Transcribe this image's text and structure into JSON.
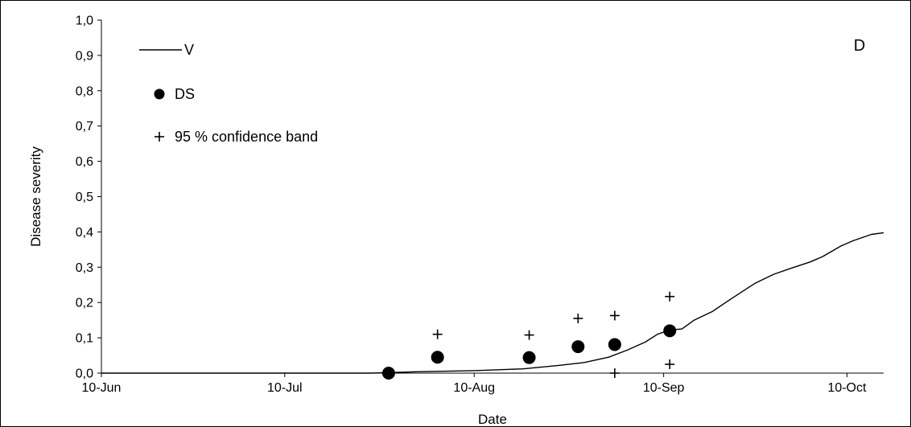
{
  "chart_data": {
    "type": "line",
    "panel_label": "D",
    "title": "",
    "xlabel": "Date",
    "ylabel": "Disease severity",
    "xlim": [
      "2000-06-10",
      "2000-10-16"
    ],
    "ylim": [
      0,
      1
    ],
    "x_ticks": [
      {
        "date": "2000-06-10",
        "label": "10-Jun"
      },
      {
        "date": "2000-07-10",
        "label": "10-Jul"
      },
      {
        "date": "2000-08-10",
        "label": "10-Aug"
      },
      {
        "date": "2000-09-10",
        "label": "10-Sep"
      },
      {
        "date": "2000-10-10",
        "label": "10-Oct"
      }
    ],
    "y_ticks": [
      {
        "value": 0.0,
        "label": "0,0"
      },
      {
        "value": 0.1,
        "label": "0,1"
      },
      {
        "value": 0.2,
        "label": "0,2"
      },
      {
        "value": 0.3,
        "label": "0,3"
      },
      {
        "value": 0.4,
        "label": "0,4"
      },
      {
        "value": 0.5,
        "label": "0,5"
      },
      {
        "value": 0.6,
        "label": "0,6"
      },
      {
        "value": 0.7,
        "label": "0,7"
      },
      {
        "value": 0.8,
        "label": "0,8"
      },
      {
        "value": 0.9,
        "label": "0,9"
      },
      {
        "value": 1.0,
        "label": "1,0"
      }
    ],
    "grid": false,
    "legend_position": "top-left",
    "series": [
      {
        "name": "V",
        "type": "line",
        "color": "#000000",
        "points": [
          {
            "x": "2000-06-10",
            "y": 0.0
          },
          {
            "x": "2000-07-24",
            "y": 0.0
          },
          {
            "x": "2000-08-01",
            "y": 0.004
          },
          {
            "x": "2000-08-10",
            "y": 0.007
          },
          {
            "x": "2000-08-18",
            "y": 0.012
          },
          {
            "x": "2000-08-24",
            "y": 0.022
          },
          {
            "x": "2000-08-28",
            "y": 0.03
          },
          {
            "x": "2000-09-01",
            "y": 0.045
          },
          {
            "x": "2000-09-04",
            "y": 0.065
          },
          {
            "x": "2000-09-07",
            "y": 0.088
          },
          {
            "x": "2000-09-09",
            "y": 0.11
          },
          {
            "x": "2000-09-11",
            "y": 0.122
          },
          {
            "x": "2000-09-13",
            "y": 0.125
          },
          {
            "x": "2000-09-15",
            "y": 0.15
          },
          {
            "x": "2000-09-18",
            "y": 0.175
          },
          {
            "x": "2000-09-21",
            "y": 0.21
          },
          {
            "x": "2000-09-25",
            "y": 0.255
          },
          {
            "x": "2000-09-28",
            "y": 0.28
          },
          {
            "x": "2000-10-01",
            "y": 0.298
          },
          {
            "x": "2000-10-04",
            "y": 0.315
          },
          {
            "x": "2000-10-06",
            "y": 0.33
          },
          {
            "x": "2000-10-09",
            "y": 0.36
          },
          {
            "x": "2000-10-11",
            "y": 0.375
          },
          {
            "x": "2000-10-14",
            "y": 0.393
          },
          {
            "x": "2000-10-17",
            "y": 0.4
          },
          {
            "x": "2000-10-22",
            "y": 0.403
          }
        ]
      },
      {
        "name": "DS",
        "type": "scatter",
        "marker": "circle",
        "color": "#000000",
        "points": [
          {
            "x": "2000-07-27",
            "y": 0.0
          },
          {
            "x": "2000-08-04",
            "y": 0.045
          },
          {
            "x": "2000-08-19",
            "y": 0.044
          },
          {
            "x": "2000-08-27",
            "y": 0.075
          },
          {
            "x": "2000-09-02",
            "y": 0.081
          },
          {
            "x": "2000-09-11",
            "y": 0.12
          }
        ]
      },
      {
        "name": "95 % confidence band",
        "type": "scatter",
        "marker": "plus",
        "color": "#000000",
        "points": [
          {
            "x": "2000-08-04",
            "y": 0.11
          },
          {
            "x": "2000-08-19",
            "y": 0.108
          },
          {
            "x": "2000-08-27",
            "y": 0.155
          },
          {
            "x": "2000-09-02",
            "y": 0.163
          },
          {
            "x": "2000-09-02",
            "y": 0.0
          },
          {
            "x": "2000-09-11",
            "y": 0.217
          },
          {
            "x": "2000-09-11",
            "y": 0.025
          }
        ]
      }
    ]
  }
}
